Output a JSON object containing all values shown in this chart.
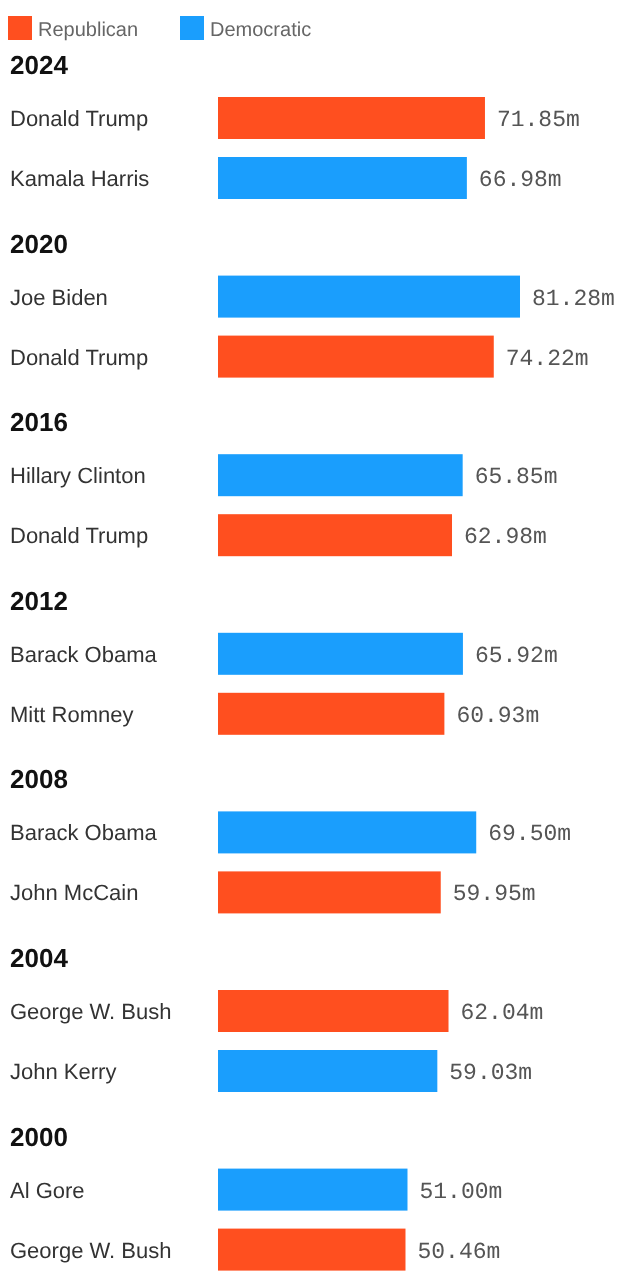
{
  "chart_data": [
    {
      "type": "bar",
      "orientation": "horizontal",
      "title": "2024",
      "categories": [
        "Donald Trump",
        "Kamala Harris"
      ],
      "legend": "top left",
      "series": [
        {
          "name": "Republican",
          "color": "#ff4f1f",
          "values": [
            71.85,
            null
          ],
          "value_labels": [
            "71.85m",
            null
          ]
        },
        {
          "name": "Democratic",
          "color": "#1a9efd",
          "values": [
            null,
            66.98
          ],
          "value_labels": [
            null,
            "66.98m"
          ]
        }
      ]
    },
    {
      "type": "bar",
      "orientation": "horizontal",
      "title": "2020",
      "categories": [
        "Joe Biden",
        "Donald Trump"
      ],
      "series": [
        {
          "color": "#ff4f1f",
          "values": [
            null,
            74.22
          ],
          "value_labels": [
            null,
            "74.22m"
          ]
        },
        {
          "color": "#1a9efd",
          "values": [
            81.28,
            null
          ],
          "value_labels": [
            "81.28m",
            null
          ]
        }
      ]
    },
    {
      "type": "bar",
      "orientation": "horizontal",
      "title": "2016",
      "categories": [
        "Hillary Clinton",
        "Donald Trump"
      ],
      "series": [
        {
          "color": "#ff4f1f",
          "values": [
            null,
            62.98
          ],
          "value_labels": [
            null,
            "62.98m"
          ]
        },
        {
          "color": "#1a9efd",
          "values": [
            65.85,
            null
          ],
          "value_labels": [
            "65.85m",
            null
          ]
        }
      ]
    },
    {
      "type": "bar",
      "orientation": "horizontal",
      "title": "2012",
      "categories": [
        "Barack Obama",
        "Mitt Romney"
      ],
      "series": [
        {
          "color": "#ff4f1f",
          "values": [
            null,
            60.93
          ],
          "value_labels": [
            null,
            "60.93m"
          ]
        },
        {
          "color": "#1a9efd",
          "values": [
            65.92,
            null
          ],
          "value_labels": [
            "65.92m",
            null
          ]
        }
      ]
    },
    {
      "type": "bar",
      "orientation": "horizontal",
      "title": "2008",
      "categories": [
        "Barack Obama",
        "John McCain"
      ],
      "series": [
        {
          "color": "#ff4f1f",
          "values": [
            null,
            59.95
          ],
          "value_labels": [
            null,
            "59.95m"
          ]
        },
        {
          "color": "#1a9efd",
          "values": [
            69.5,
            null
          ],
          "value_labels": [
            "69.50m",
            null
          ]
        }
      ]
    },
    {
      "type": "bar",
      "orientation": "horizontal",
      "title": "2004",
      "categories": [
        "George W. Bush",
        "John Kerry"
      ],
      "series": [
        {
          "color": "#ff4f1f",
          "values": [
            62.04,
            null
          ],
          "value_labels": [
            "62.04m",
            null
          ]
        },
        {
          "color": "#1a9efd",
          "values": [
            null,
            59.03
          ],
          "value_labels": [
            null,
            "59.03m"
          ]
        }
      ]
    },
    {
      "type": "bar",
      "orientation": "horizontal",
      "title": "2000",
      "categories": [
        "Al Gore",
        "George W. Bush"
      ],
      "series": [
        {
          "color": "#ff4f1f",
          "values": [
            null,
            50.46
          ],
          "value_labels": [
            null,
            "50.46m"
          ]
        },
        {
          "color": "#1a9efd",
          "values": [
            51.0,
            null
          ],
          "value_labels": [
            "51.00m",
            null
          ]
        }
      ]
    }
  ]
}
